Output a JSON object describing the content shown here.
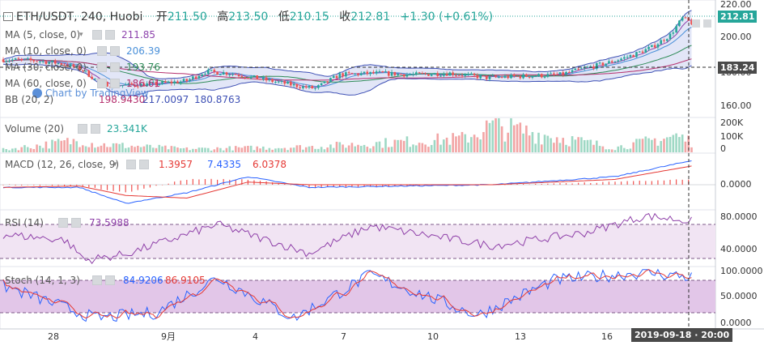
{
  "header": {
    "symbol": "ETH/USDT, 240, Huobi",
    "open_label": "开",
    "open": "211.50",
    "high_label": "高",
    "high": "213.50",
    "low_label": "低",
    "low": "210.15",
    "close_label": "收",
    "close": "212.81",
    "change": "+1.30 (+0.61%)"
  },
  "watermark": "Chart by TradingView",
  "indicators": {
    "ma5": {
      "label": "MA (5, close, 0)",
      "value": "211.85"
    },
    "ma10": {
      "label": "MA (10, close, 0)",
      "value": "206.39"
    },
    "ma30": {
      "label": "MA (30, close, 0)",
      "value": "193.76"
    },
    "ma60": {
      "label": "MA (60, close, 0)",
      "value": "186.61"
    },
    "bb": {
      "label": "BB (20, 2)",
      "v1": "198.9430",
      "v2": "217.0097",
      "v3": "180.8763"
    },
    "volume": {
      "label": "Volume (20)",
      "value": "23.341K"
    },
    "macd": {
      "label": "MACD (12, 26, close, 9)",
      "v1": "1.3957",
      "v2": "7.4335",
      "v3": "6.0378"
    },
    "rsi": {
      "label": "RSI (14)",
      "value": "73.5988"
    },
    "stoch": {
      "label": "Stoch (14, 1, 3)",
      "v1": "84.9206",
      "v2": "86.9105"
    }
  },
  "price_axis": [
    "220.00",
    "200.00",
    "180.00",
    "160.00"
  ],
  "price_tags": {
    "last": "212.81",
    "crosshair": "183.24"
  },
  "volume_axis": [
    "200K",
    "100K",
    "0"
  ],
  "macd_axis": [
    "0.0000"
  ],
  "rsi_axis": [
    "80.0000",
    "40.0000"
  ],
  "stoch_axis": [
    "100.0000",
    "50.0000",
    "0.0000"
  ],
  "time_axis": [
    "28",
    "9月",
    "4",
    "7",
    "10",
    "13",
    "16"
  ],
  "crosshair_time": "2019-09-18 · 20:00",
  "colors": {
    "up": "#26a69a",
    "down": "#ef5350",
    "vol_up": "#9ed8c4",
    "vol_down": "#f2a5a5",
    "ma5": "#8e44ad",
    "ma10": "#4a90d9",
    "ma30": "#2e8b57",
    "ma60": "#b5306e",
    "bb_fill": "#dbe0f5",
    "bb_line": "#3f51b5",
    "macd": "#2962ff",
    "signal": "#e53935",
    "rsi": "#8e3fa8",
    "rsi_band": "#f1e4f3",
    "stoch_k": "#2962ff",
    "stoch_d": "#e53935",
    "stoch_band": "#e2c6e8"
  },
  "chart_data": {
    "type": "candlestick",
    "title": "ETH/USDT, 240, Huobi",
    "ylim": [
      150,
      222
    ],
    "x_labels": [
      "28",
      "9月",
      "4",
      "7",
      "10",
      "13",
      "16"
    ],
    "candles_anchor": [
      {
        "t": 0,
        "price": 189
      },
      {
        "t": 12,
        "price": 188
      },
      {
        "t": 20,
        "price": 186
      },
      {
        "t": 26,
        "price": 182
      },
      {
        "t": 32,
        "price": 173
      },
      {
        "t": 40,
        "price": 172
      },
      {
        "t": 50,
        "price": 173
      },
      {
        "t": 60,
        "price": 175
      },
      {
        "t": 66,
        "price": 181
      },
      {
        "t": 74,
        "price": 180
      },
      {
        "t": 82,
        "price": 177
      },
      {
        "t": 90,
        "price": 174
      },
      {
        "t": 98,
        "price": 171
      },
      {
        "t": 102,
        "price": 170
      },
      {
        "t": 110,
        "price": 179
      },
      {
        "t": 122,
        "price": 180
      },
      {
        "t": 134,
        "price": 179
      },
      {
        "t": 146,
        "price": 180
      },
      {
        "t": 158,
        "price": 177
      },
      {
        "t": 170,
        "price": 178
      },
      {
        "t": 182,
        "price": 179
      },
      {
        "t": 190,
        "price": 183
      },
      {
        "t": 198,
        "price": 187
      },
      {
        "t": 206,
        "price": 192
      },
      {
        "t": 212,
        "price": 197
      },
      {
        "t": 218,
        "price": 205
      },
      {
        "t": 222,
        "price": 216
      },
      {
        "t": 225,
        "price": 213
      }
    ],
    "volume_anchor": [
      {
        "t": 0,
        "value": 20
      },
      {
        "t": 26,
        "value": 90
      },
      {
        "t": 30,
        "value": 60
      },
      {
        "t": 60,
        "value": 25
      },
      {
        "t": 100,
        "value": 40
      },
      {
        "t": 150,
        "value": 100
      },
      {
        "t": 160,
        "value": 195
      },
      {
        "t": 200,
        "value": 35
      },
      {
        "t": 220,
        "value": 120
      },
      {
        "t": 225,
        "value": 80
      }
    ],
    "rsi_anchor": [
      {
        "t": 0,
        "value": 58
      },
      {
        "t": 20,
        "value": 52
      },
      {
        "t": 27,
        "value": 28
      },
      {
        "t": 40,
        "value": 35
      },
      {
        "t": 70,
        "value": 70
      },
      {
        "t": 100,
        "value": 36
      },
      {
        "t": 120,
        "value": 68
      },
      {
        "t": 160,
        "value": 45
      },
      {
        "t": 190,
        "value": 60
      },
      {
        "t": 210,
        "value": 80
      },
      {
        "t": 225,
        "value": 74
      }
    ],
    "stoch_anchor": [
      {
        "t": 0,
        "value": 70
      },
      {
        "t": 15,
        "value": 40
      },
      {
        "t": 30,
        "value": 10
      },
      {
        "t": 50,
        "value": 20
      },
      {
        "t": 70,
        "value": 85
      },
      {
        "t": 95,
        "value": 10
      },
      {
        "t": 120,
        "value": 90
      },
      {
        "t": 155,
        "value": 15
      },
      {
        "t": 180,
        "value": 80
      },
      {
        "t": 210,
        "value": 95
      },
      {
        "t": 225,
        "value": 86
      }
    ],
    "macd_anchor": [
      {
        "t": 0,
        "macd": -1,
        "signal": -1
      },
      {
        "t": 25,
        "macd": -1,
        "signal": -0.5
      },
      {
        "t": 40,
        "macd": -7,
        "signal": -4
      },
      {
        "t": 60,
        "macd": -3,
        "signal": -5
      },
      {
        "t": 80,
        "macd": 3,
        "signal": 1
      },
      {
        "t": 100,
        "macd": -1,
        "signal": 0
      },
      {
        "t": 160,
        "macd": 0,
        "signal": 0
      },
      {
        "t": 200,
        "macd": 3,
        "signal": 2
      },
      {
        "t": 225,
        "macd": 9,
        "signal": 7
      }
    ]
  }
}
